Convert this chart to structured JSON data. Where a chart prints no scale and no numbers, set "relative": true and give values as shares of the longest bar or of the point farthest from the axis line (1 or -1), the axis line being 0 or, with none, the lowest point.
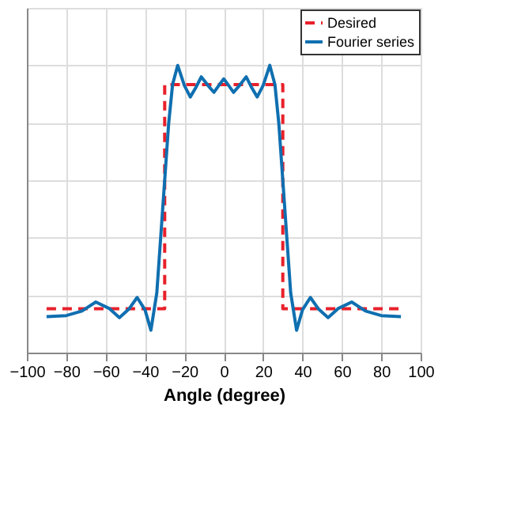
{
  "chart_data": {
    "type": "line",
    "xlabel": "Angle (degree)",
    "xlim": [
      -100,
      100
    ],
    "xticks": [
      -100,
      -80,
      -60,
      -40,
      -20,
      0,
      20,
      40,
      60,
      80,
      100
    ],
    "relative": true,
    "grid": true,
    "legend": "top right",
    "series": [
      {
        "name": "Desired",
        "color": "#e8202a",
        "line_style": "dashed",
        "x": [
          -90,
          -30,
          -30,
          30,
          30,
          90
        ],
        "values": [
          0.153,
          0.153,
          0.933,
          0.933,
          0.153,
          0.153
        ]
      },
      {
        "name": "Fourier series",
        "color": "#0f6fb0",
        "line_style": "solid",
        "x": [
          -90,
          -80,
          -72,
          -65,
          -58,
          -53,
          -48,
          -44,
          -40,
          -37,
          -34,
          -32,
          -30,
          -28,
          -26,
          -23.4,
          -20,
          -17,
          -14,
          -11.4,
          -8,
          -5,
          -2.5,
          0,
          2.5,
          5,
          8,
          11.4,
          14,
          17,
          20,
          23.4,
          26,
          28,
          30,
          32,
          34,
          37,
          40,
          44,
          48,
          53,
          58,
          65,
          72,
          80,
          90
        ],
        "values": [
          0.125,
          0.129,
          0.145,
          0.176,
          0.153,
          0.122,
          0.153,
          0.192,
          0.149,
          0.078,
          0.208,
          0.404,
          0.6,
          0.796,
          0.933,
          1.0,
          0.93,
          0.89,
          0.925,
          0.96,
          0.93,
          0.906,
          0.93,
          0.953,
          0.93,
          0.906,
          0.93,
          0.96,
          0.925,
          0.89,
          0.93,
          1.0,
          0.933,
          0.796,
          0.6,
          0.404,
          0.208,
          0.078,
          0.149,
          0.192,
          0.153,
          0.122,
          0.153,
          0.176,
          0.145,
          0.129,
          0.125
        ]
      }
    ]
  }
}
